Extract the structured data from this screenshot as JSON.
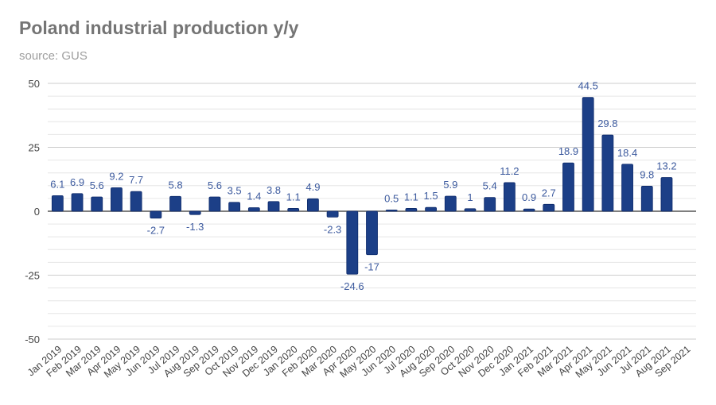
{
  "chart_data": {
    "type": "bar",
    "title": "Poland industrial production y/y",
    "subtitle": "source: GUS",
    "xlabel": "",
    "ylabel": "",
    "ylim": [
      -50,
      50
    ],
    "yticks": [
      50,
      25,
      0,
      -25,
      -50
    ],
    "grid": true,
    "legend": "none",
    "bar_color": "#1c3f87",
    "label_color": "#3c5a9e",
    "categories": [
      "Jan 2019",
      "Feb 2019",
      "Mar 2019",
      "Apr 2019",
      "May 2019",
      "Jun 2019",
      "Jul 2019",
      "Aug 2019",
      "Sep 2019",
      "Oct 2019",
      "Nov 2019",
      "Dec 2019",
      "Jan 2020",
      "Feb 2020",
      "Mar 2020",
      "Apr 2020",
      "May 2020",
      "Jun 2020",
      "Jul 2020",
      "Aug 2020",
      "Sep 2020",
      "Oct 2020",
      "Nov 2020",
      "Dec 2020",
      "Jan 2021",
      "Feb 2021",
      "Mar 2021",
      "Apr 2021",
      "May 2021",
      "Jun 2021",
      "Jul 2021",
      "Aug 2021",
      "Sep 2021"
    ],
    "values": [
      6.1,
      6.9,
      5.6,
      9.2,
      7.7,
      -2.7,
      5.8,
      -1.3,
      5.6,
      3.5,
      1.4,
      3.8,
      1.1,
      4.9,
      -2.3,
      -24.6,
      -17,
      0.5,
      1.1,
      1.5,
      5.9,
      1,
      5.4,
      11.2,
      0.9,
      2.7,
      18.9,
      44.5,
      29.8,
      18.4,
      9.8,
      13.2,
      null
    ]
  }
}
